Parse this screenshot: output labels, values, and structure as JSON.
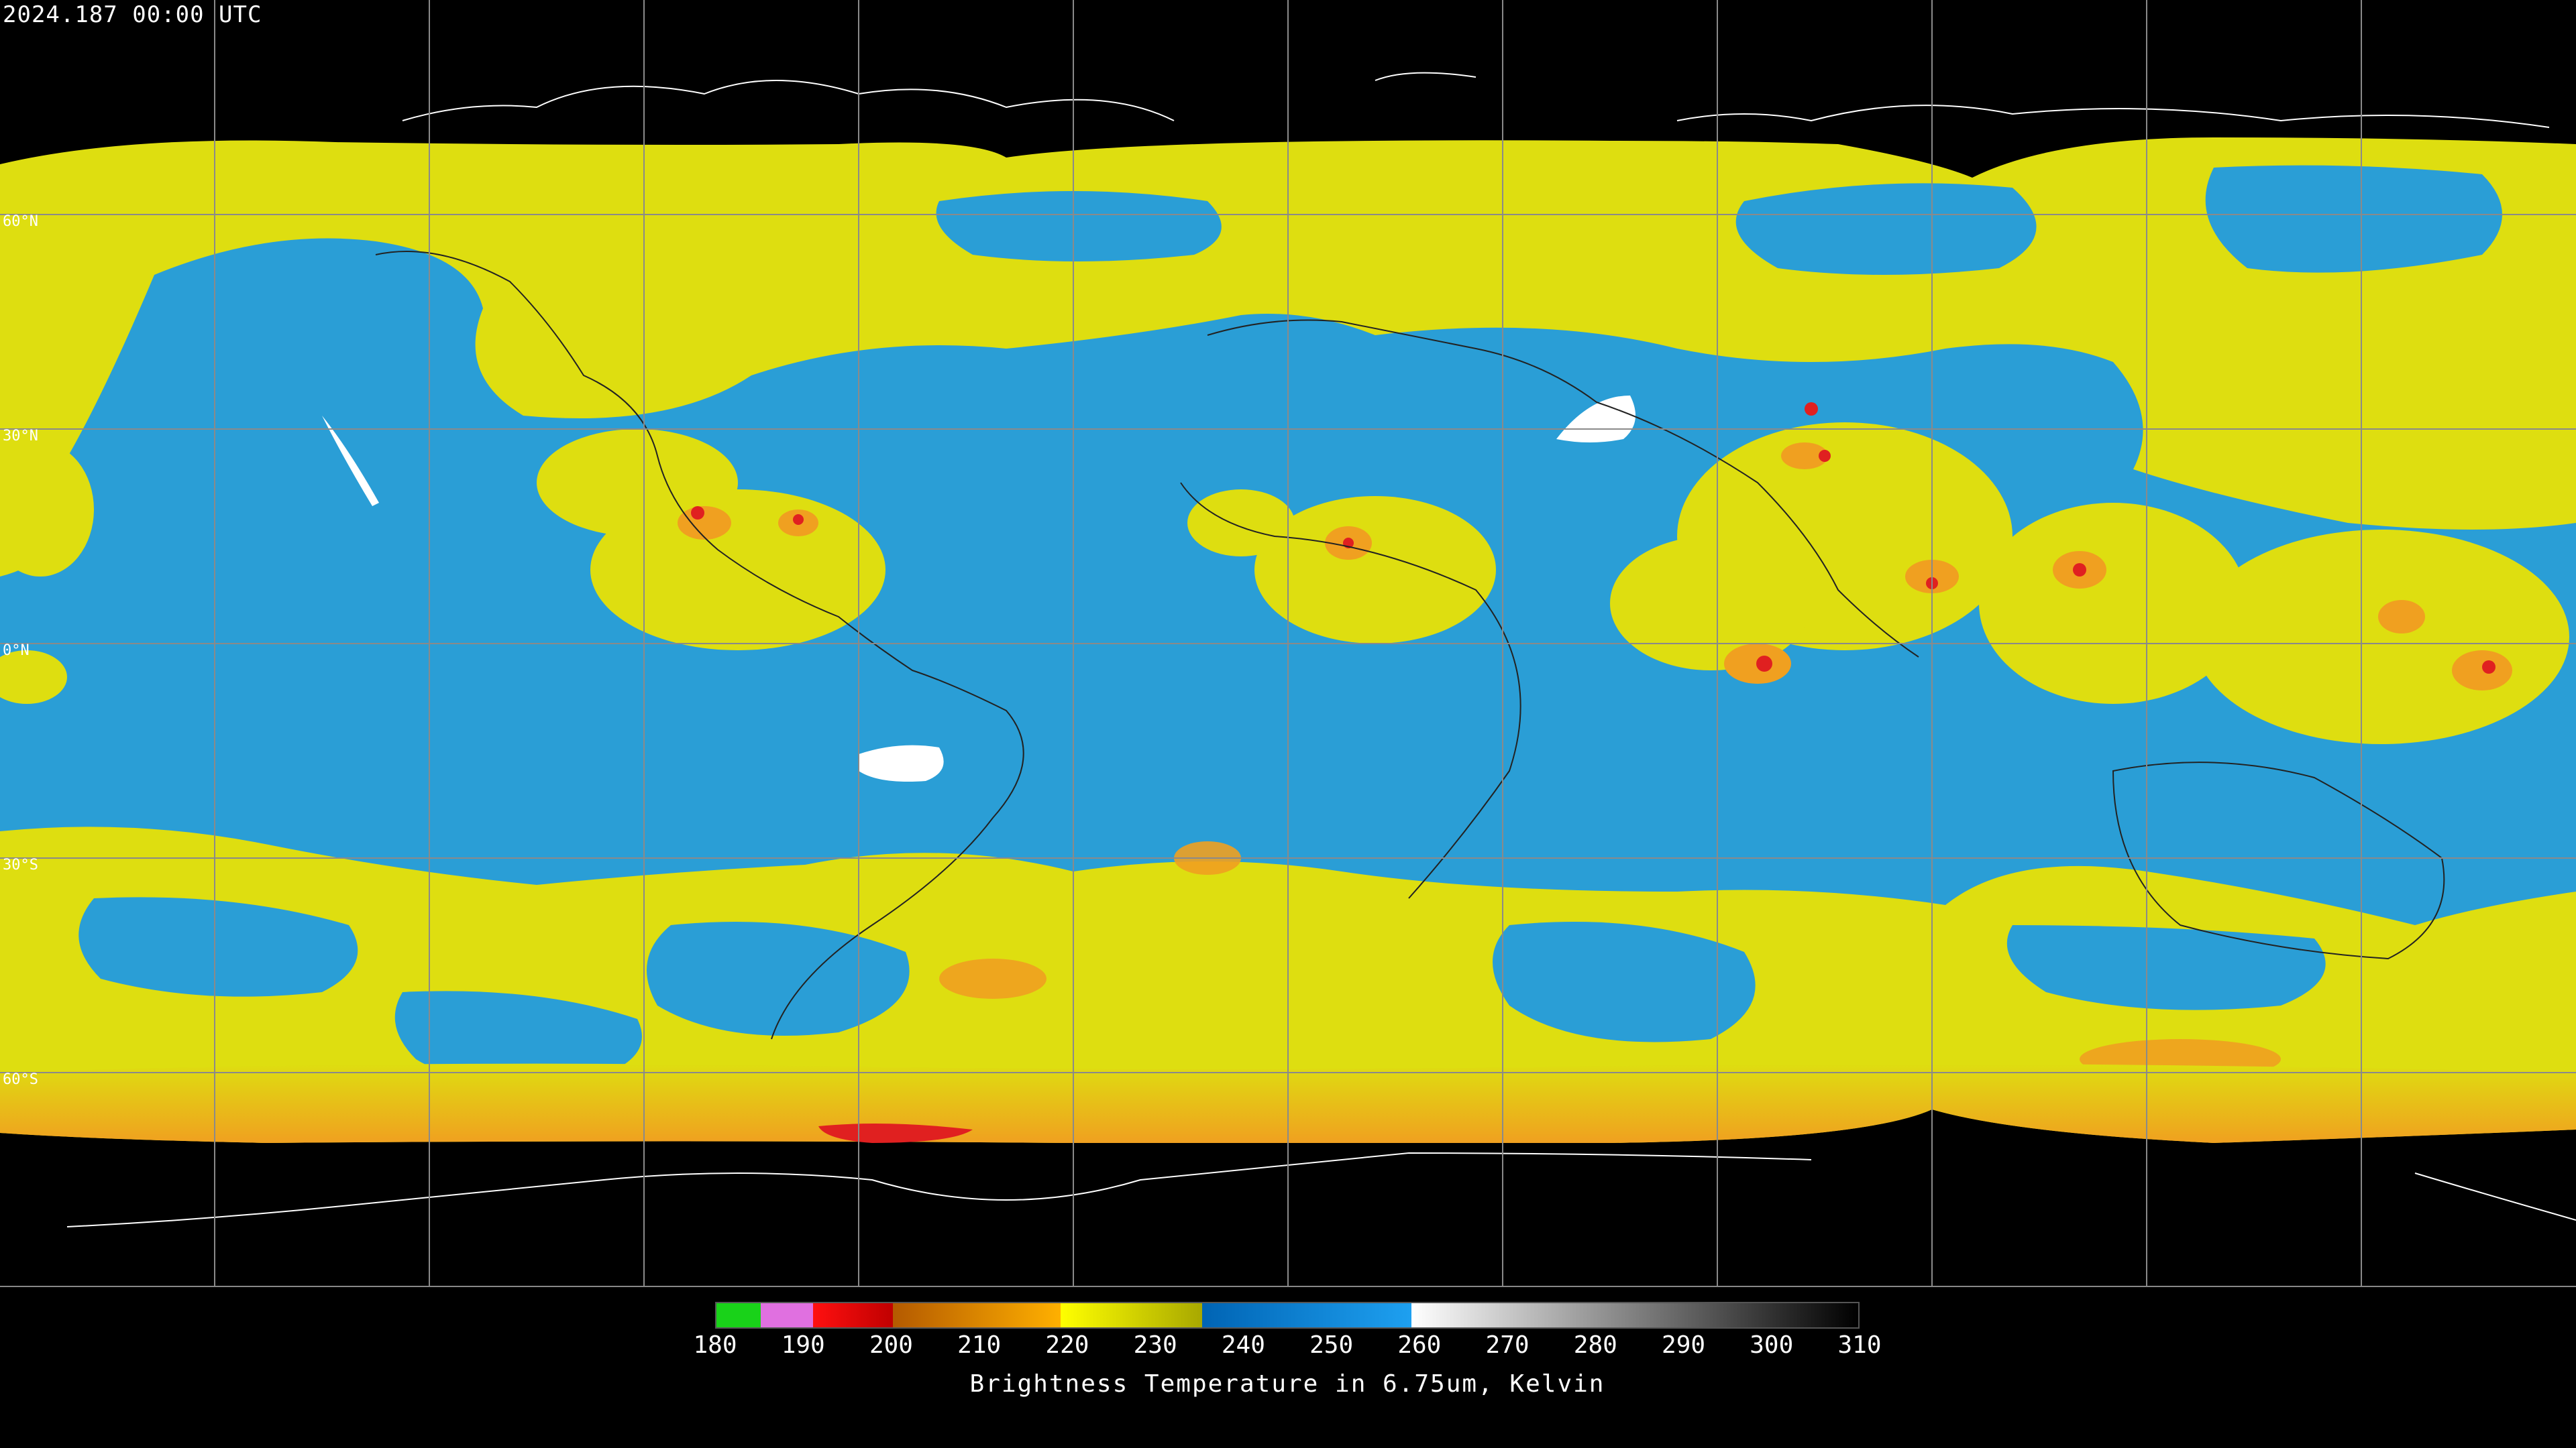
{
  "timestamp": "2024.187 00:00 UTC",
  "lat_labels": {
    "n60": "60°N",
    "n30": "30°N",
    "eq": "0°N",
    "s30": "30°S",
    "s60": "60°S"
  },
  "legend": {
    "title": "Brightness Temperature in 6.75um, Kelvin",
    "ticks": [
      "180",
      "190",
      "200",
      "210",
      "220",
      "230",
      "240",
      "250",
      "260",
      "270",
      "280",
      "290",
      "300",
      "310"
    ],
    "colors": {
      "green": "#19d219",
      "violet": "#e070e0",
      "red": "#e00000",
      "brown": "#b45a00",
      "orange": "#ffa500",
      "yellow": "#e6e600",
      "olive": "#b4b400",
      "dark_blue": "#0064b4",
      "blue": "#1e9be6",
      "white": "#ffffff",
      "black": "#000000"
    }
  },
  "map": {
    "colors": {
      "background": "#000000",
      "yellow": "#dede10",
      "blue": "#2a9ed6",
      "orange": "#f0a020",
      "red": "#e02020",
      "white": "#ffffff",
      "graticule": "#888888",
      "coast": "#222222"
    }
  }
}
